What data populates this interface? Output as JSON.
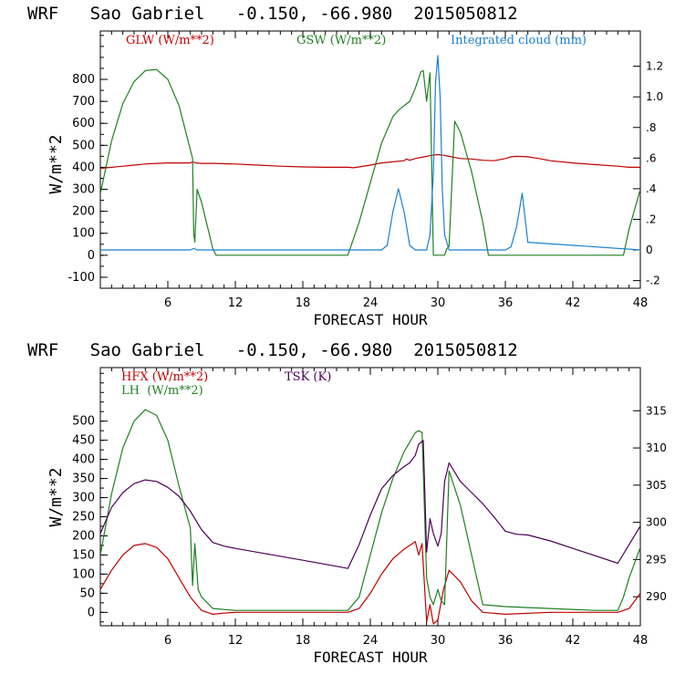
{
  "chart_data": [
    {
      "type": "line",
      "title": "WRF   Sao Gabriel   -0.150, -66.980  2015050812",
      "xlabel": "FORECAST HOUR",
      "ylabel": "W/m**2",
      "xlim": [
        0,
        48
      ],
      "ylim": [
        -150,
        1020
      ],
      "y2lim": [
        -0.25,
        1.43
      ],
      "xticks": [
        "6",
        "12",
        "18",
        "24",
        "30",
        "36",
        "42",
        "48"
      ],
      "yticks": [
        "-100",
        "0",
        "100",
        "200",
        "300",
        "400",
        "500",
        "600",
        "700",
        "800"
      ],
      "y2ticks": [
        "-.2",
        "0",
        ".2",
        ".4",
        ".6",
        ".8",
        "1.0",
        "1.2"
      ],
      "series": [
        {
          "name": "GLW (W/m**2)",
          "color": "#c00000",
          "axis": "left",
          "x": [
            0,
            1,
            2,
            3,
            4,
            5,
            6,
            7,
            8,
            8.2,
            8.5,
            9,
            10,
            12,
            14,
            16,
            18,
            20,
            22,
            22.5,
            23,
            24,
            25,
            26,
            27,
            27.2,
            27.5,
            28,
            28.5,
            29,
            29.5,
            30,
            30.5,
            31,
            32,
            33,
            34,
            35,
            36,
            36.5,
            37,
            38,
            39,
            40,
            42,
            44,
            46,
            47,
            48
          ],
          "y": [
            395,
            400,
            405,
            410,
            415,
            418,
            420,
            420,
            420,
            425,
            420,
            418,
            418,
            415,
            410,
            405,
            402,
            400,
            400,
            398,
            402,
            410,
            420,
            425,
            430,
            438,
            432,
            440,
            445,
            450,
            455,
            458,
            455,
            450,
            440,
            438,
            432,
            430,
            440,
            448,
            450,
            448,
            440,
            430,
            420,
            412,
            405,
            400,
            400
          ]
        },
        {
          "name": "GSW (W/m**2)",
          "color": "#208020",
          "axis": "left",
          "x": [
            0,
            1,
            2,
            3,
            4,
            5,
            6,
            7,
            8,
            8.2,
            8.3,
            8.4,
            8.6,
            9,
            10,
            10.3,
            12,
            14,
            18,
            21,
            22,
            23,
            24,
            25,
            26,
            26.5,
            27,
            27.5,
            28,
            28.5,
            28.7,
            29,
            29.3,
            29.6,
            30,
            30.3,
            30.6,
            30.8,
            31,
            31.5,
            32,
            33,
            34,
            34.5,
            36,
            40,
            44,
            46,
            46.5,
            47,
            48
          ],
          "y": [
            280,
            520,
            690,
            790,
            840,
            845,
            800,
            680,
            480,
            440,
            100,
            60,
            300,
            240,
            30,
            0,
            0,
            0,
            0,
            0,
            0,
            150,
            330,
            510,
            630,
            660,
            680,
            700,
            760,
            835,
            840,
            700,
            830,
            0,
            0,
            0,
            0,
            30,
            40,
            610,
            560,
            380,
            150,
            0,
            0,
            0,
            0,
            0,
            0,
            120,
            300
          ]
        },
        {
          "name": "Integrated cloud (mm)",
          "color": "#1a80d0",
          "axis": "right",
          "x": [
            0,
            8,
            8.3,
            8.6,
            25,
            25.5,
            26,
            26.5,
            27,
            27.5,
            28,
            29,
            29.3,
            29.6,
            29.8,
            30,
            30.2,
            30.4,
            30.6,
            31,
            36,
            36.5,
            37,
            37.5,
            38,
            48
          ],
          "y": [
            0,
            0,
            0.01,
            0,
            0,
            0.03,
            0.25,
            0.4,
            0.25,
            0.03,
            0,
            0,
            0.1,
            0.5,
            1.1,
            1.27,
            1.0,
            0.4,
            0.1,
            0,
            0,
            0.02,
            0.15,
            0.37,
            0.05,
            0
          ]
        }
      ]
    },
    {
      "type": "line",
      "title": "WRF   Sao Gabriel   -0.150, -66.980  2015050812",
      "xlabel": "FORECAST HOUR",
      "ylabel": "W/m**2",
      "xlim": [
        0,
        48
      ],
      "ylim": [
        -35,
        640
      ],
      "y2lim": [
        286.1,
        320.8
      ],
      "xticks": [
        "6",
        "12",
        "18",
        "24",
        "30",
        "36",
        "42",
        "48"
      ],
      "yticks": [
        "0",
        "50",
        "100",
        "150",
        "200",
        "250",
        "300",
        "350",
        "400",
        "450",
        "500"
      ],
      "y2ticks": [
        "290",
        "295",
        "300",
        "305",
        "310",
        "315"
      ],
      "series": [
        {
          "name": "HFX (W/m**2)",
          "color": "#c00000",
          "axis": "left",
          "x": [
            0,
            1,
            2,
            3,
            4,
            5,
            6,
            7,
            8,
            9,
            10,
            11,
            12,
            16,
            20,
            22,
            23,
            24,
            25,
            26,
            27,
            28,
            28.3,
            28.6,
            29,
            29.3,
            29.6,
            30,
            30.5,
            31,
            32,
            33,
            34,
            36,
            40,
            44,
            46,
            47,
            48
          ],
          "y": [
            60,
            110,
            150,
            175,
            180,
            170,
            140,
            90,
            40,
            5,
            -5,
            -2,
            0,
            0,
            0,
            0,
            10,
            50,
            100,
            140,
            165,
            185,
            150,
            180,
            -25,
            20,
            -30,
            -20,
            60,
            110,
            80,
            30,
            0,
            -5,
            0,
            0,
            0,
            10,
            50
          ]
        },
        {
          "name": "LH  (W/m**2)",
          "color": "#208020",
          "axis": "left",
          "x": [
            0,
            1,
            2,
            3,
            4,
            5,
            6,
            7,
            8,
            8.2,
            8.4,
            8.7,
            9,
            10,
            12,
            16,
            20,
            22,
            23,
            24,
            25,
            26,
            27,
            28,
            28.3,
            28.6,
            29,
            29.3,
            29.6,
            30,
            30.3,
            30.6,
            31,
            32,
            33,
            34,
            36,
            40,
            44,
            46,
            46.5,
            47,
            48
          ],
          "y": [
            150,
            310,
            430,
            500,
            530,
            515,
            450,
            330,
            220,
            70,
            180,
            60,
            40,
            10,
            5,
            5,
            5,
            5,
            40,
            150,
            260,
            350,
            420,
            470,
            475,
            470,
            90,
            40,
            20,
            60,
            30,
            20,
            370,
            280,
            150,
            20,
            15,
            10,
            5,
            5,
            40,
            90,
            170
          ]
        },
        {
          "name": "TSK (K)",
          "color": "#4b0055",
          "axis": "right",
          "x": [
            0,
            1,
            2,
            3,
            4,
            5,
            6,
            7,
            8,
            9,
            10,
            11,
            12,
            15,
            18,
            21,
            22,
            23,
            24,
            25,
            26,
            27,
            27.5,
            28,
            28.3,
            28.7,
            29,
            29.3,
            29.6,
            30,
            30.3,
            30.6,
            31,
            32,
            33,
            34,
            35,
            36,
            37,
            38,
            40,
            42,
            44,
            46,
            47,
            48
          ],
          "y": [
            298.5,
            302,
            304,
            305.2,
            305.7,
            305.5,
            304.7,
            303.5,
            301.5,
            299,
            297.3,
            296.8,
            296.5,
            295.7,
            294.9,
            294.1,
            293.8,
            297,
            301,
            304.5,
            306.3,
            307.5,
            308,
            309,
            310.5,
            311,
            296,
            300.5,
            298.5,
            296.8,
            298.5,
            305.5,
            308,
            305.5,
            304,
            302.5,
            300.7,
            298.8,
            298.4,
            298.3,
            297.5,
            296.5,
            295.5,
            294.5,
            297,
            299.5
          ]
        }
      ]
    }
  ]
}
